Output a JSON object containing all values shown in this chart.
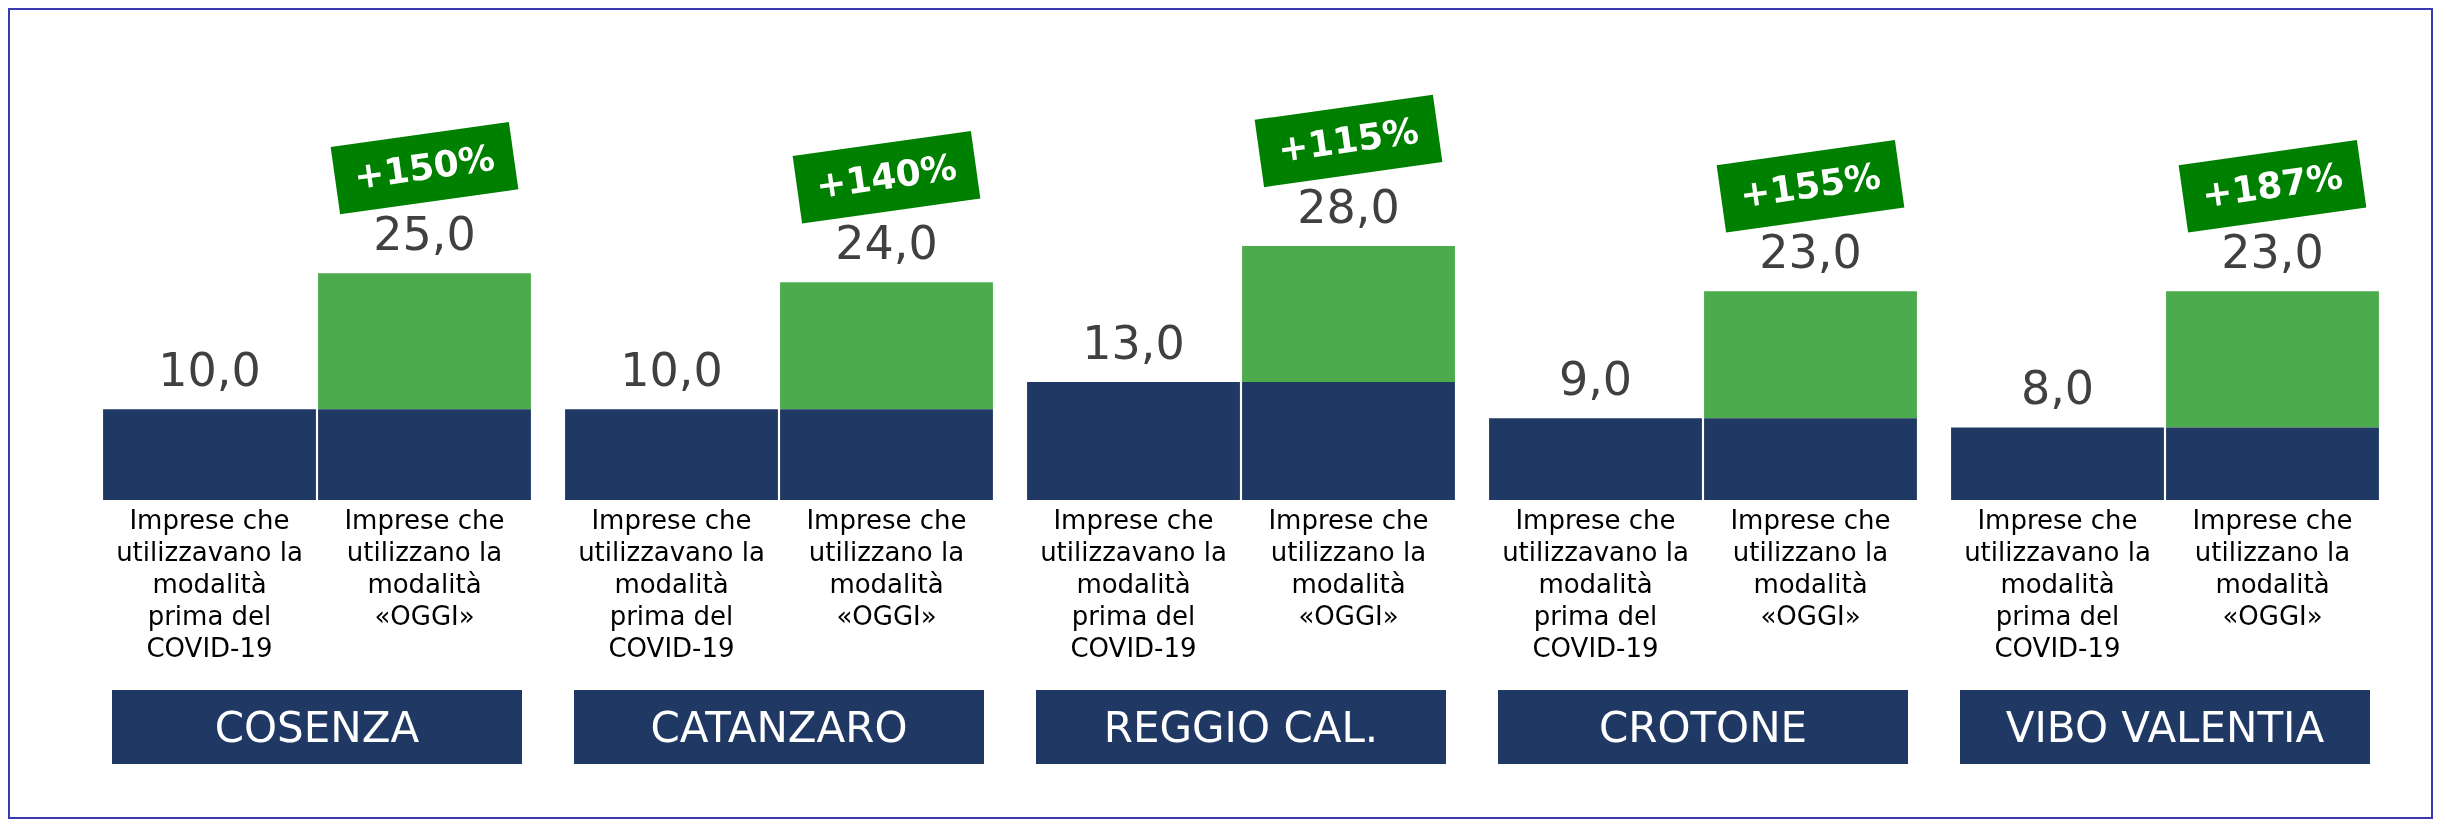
{
  "chart_data": [
    {
      "type": "bar",
      "title": "COSENZA",
      "categories": [
        "Imprese che utilizzavano la modalità prima del COVID-19",
        "Imprese che utilizzano la modalità «OGGI»"
      ],
      "stacked": true,
      "series": [
        {
          "color": "#203864",
          "values": [
            10,
            10
          ],
          "value_labels": [
            "10,0",
            null
          ]
        },
        {
          "color": "#4cab4c",
          "values": [
            null,
            15
          ]
        }
      ],
      "totals": [
        null,
        "25,0"
      ],
      "annotations": [
        "+150%"
      ]
    },
    {
      "type": "bar",
      "title": "CATANZARO",
      "categories": [
        "Imprese che utilizzavano la modalità prima del COVID-19",
        "Imprese che utilizzano la modalità «OGGI»"
      ],
      "stacked": true,
      "series": [
        {
          "color": "#203864",
          "values": [
            10,
            10
          ],
          "value_labels": [
            "10,0",
            null
          ]
        },
        {
          "color": "#4cab4c",
          "values": [
            null,
            14
          ]
        }
      ],
      "totals": [
        null,
        "24,0"
      ],
      "annotations": [
        "+140%"
      ]
    },
    {
      "type": "bar",
      "title": "REGGIO CAL.",
      "categories": [
        "Imprese che utilizzavano la modalità prima del COVID-19",
        "Imprese che utilizzano la modalità «OGGI»"
      ],
      "stacked": true,
      "series": [
        {
          "color": "#203864",
          "values": [
            13,
            13
          ],
          "value_labels": [
            "13,0",
            null
          ]
        },
        {
          "color": "#4cab4c",
          "values": [
            null,
            15
          ]
        }
      ],
      "totals": [
        null,
        "28,0"
      ],
      "annotations": [
        "+115%"
      ]
    },
    {
      "type": "bar",
      "title": "CROTONE",
      "categories": [
        "Imprese che utilizzavano la modalità prima del COVID-19",
        "Imprese che utilizzano la modalità «OGGI»"
      ],
      "stacked": true,
      "series": [
        {
          "color": "#203864",
          "values": [
            9,
            9
          ],
          "value_labels": [
            "9,0",
            null
          ]
        },
        {
          "color": "#4cab4c",
          "values": [
            null,
            14
          ]
        }
      ],
      "totals": [
        null,
        "23,0"
      ],
      "annotations": [
        "+155%"
      ]
    },
    {
      "type": "bar",
      "title": "VIBO VALENTIA",
      "categories": [
        "Imprese che utilizzavano la modalità prima del COVID-19",
        "Imprese che utilizzano la modalità «OGGI»"
      ],
      "stacked": true,
      "series": [
        {
          "color": "#203864",
          "values": [
            8,
            8
          ],
          "value_labels": [
            "8,0",
            null
          ]
        },
        {
          "color": "#4cab4c",
          "values": [
            null,
            15
          ]
        }
      ],
      "totals": [
        null,
        "23,0"
      ],
      "annotations": [
        "+187%"
      ]
    }
  ]
}
